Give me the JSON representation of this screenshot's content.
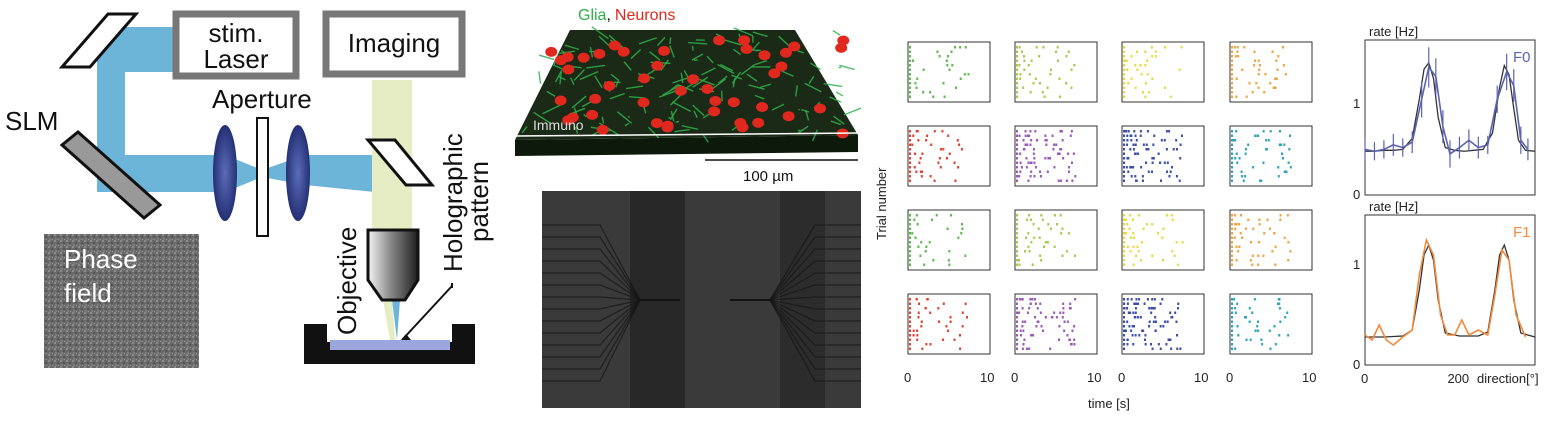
{
  "setup": {
    "stim_laser_label": [
      "stim.",
      "Laser"
    ],
    "imaging_label": "Imaging",
    "slm_label": "SLM",
    "aperture_label": "Aperture",
    "phase_field_label": [
      "Phase",
      "field"
    ],
    "objective_label": "Objective",
    "holographic_label": [
      "Holographic",
      "pattern"
    ],
    "beam_color": "#6cb4d8",
    "imaging_beam_color": "#e6edc4",
    "lens_color": "#3a4a8c"
  },
  "tissue": {
    "title_glia": "Glia",
    "title_sep": ",",
    "title_neurons": "Neurons",
    "glia_color": "#2db04b",
    "neuron_color": "#e0281e",
    "immuno_label": "Immuno",
    "scale_label": "100 µm"
  },
  "raster": {
    "ylabel": "Trial number",
    "xlabel": "time [s]",
    "x_ticks": [
      "0",
      "10"
    ],
    "xlim": [
      0,
      10
    ],
    "row_colors": [
      [
        "#5bb84a",
        "#a6c94a",
        "#e9d83c",
        "#f0a23c"
      ],
      [
        "#e0402e",
        "#9b59b6",
        "#3b4ea8",
        "#2ba3b8"
      ],
      [
        "#5bb84a",
        "#a6c94a",
        "#e9d83c",
        "#f0a23c"
      ],
      [
        "#e0402e",
        "#9b59b6",
        "#3b4ea8",
        "#2ba3b8"
      ]
    ],
    "densities": [
      [
        0.25,
        0.35,
        0.3,
        0.35
      ],
      [
        0.35,
        0.7,
        0.75,
        0.4
      ],
      [
        0.25,
        0.35,
        0.35,
        0.4
      ],
      [
        0.35,
        0.65,
        0.8,
        0.35
      ]
    ]
  },
  "chart_data": [
    {
      "type": "line",
      "series_label": "F0",
      "ylabel": "rate [Hz]",
      "y_ticks": [
        "0",
        "1"
      ],
      "ylim": [
        0,
        1.7
      ],
      "xlim": [
        0,
        360
      ],
      "color": "#5b63b0",
      "fit": [
        [
          0,
          0.48
        ],
        [
          20,
          0.48
        ],
        [
          40,
          0.49
        ],
        [
          60,
          0.49
        ],
        [
          80,
          0.5
        ],
        [
          100,
          0.62
        ],
        [
          115,
          1.05
        ],
        [
          125,
          1.38
        ],
        [
          135,
          1.45
        ],
        [
          145,
          1.28
        ],
        [
          155,
          0.85
        ],
        [
          170,
          0.52
        ],
        [
          190,
          0.49
        ],
        [
          210,
          0.48
        ],
        [
          230,
          0.49
        ],
        [
          250,
          0.5
        ],
        [
          270,
          0.68
        ],
        [
          285,
          1.18
        ],
        [
          295,
          1.42
        ],
        [
          305,
          1.32
        ],
        [
          315,
          0.95
        ],
        [
          325,
          0.6
        ],
        [
          340,
          0.49
        ],
        [
          360,
          0.48
        ]
      ],
      "measured": [
        [
          0,
          0.5
        ],
        [
          20,
          0.48
        ],
        [
          40,
          0.5
        ],
        [
          60,
          0.55
        ],
        [
          80,
          0.52
        ],
        [
          100,
          0.58
        ],
        [
          120,
          1.05
        ],
        [
          135,
          1.4
        ],
        [
          150,
          1.3
        ],
        [
          165,
          0.75
        ],
        [
          180,
          0.45
        ],
        [
          200,
          0.52
        ],
        [
          220,
          0.6
        ],
        [
          240,
          0.52
        ],
        [
          260,
          0.55
        ],
        [
          280,
          1.05
        ],
        [
          300,
          1.35
        ],
        [
          315,
          1.2
        ],
        [
          330,
          0.6
        ],
        [
          345,
          0.5
        ]
      ],
      "error_bars": [
        0.12,
        0.1,
        0.1,
        0.12,
        0.1,
        0.12,
        0.2,
        0.22,
        0.2,
        0.18,
        0.15,
        0.12,
        0.12,
        0.12,
        0.1,
        0.15,
        0.2,
        0.18,
        0.15,
        0.12
      ]
    },
    {
      "type": "line",
      "series_label": "F1",
      "ylabel": "rate [Hz]",
      "y_ticks": [
        "0",
        "1"
      ],
      "xlabel": "direction[°]",
      "x_ticks": [
        "0",
        "200"
      ],
      "ylim": [
        0,
        1.5
      ],
      "xlim": [
        0,
        360
      ],
      "color": "#f08a3c",
      "fit": [
        [
          0,
          0.28
        ],
        [
          40,
          0.28
        ],
        [
          80,
          0.29
        ],
        [
          100,
          0.35
        ],
        [
          115,
          0.75
        ],
        [
          125,
          1.1
        ],
        [
          135,
          1.2
        ],
        [
          145,
          1.05
        ],
        [
          155,
          0.65
        ],
        [
          170,
          0.32
        ],
        [
          200,
          0.29
        ],
        [
          240,
          0.29
        ],
        [
          260,
          0.33
        ],
        [
          275,
          0.75
        ],
        [
          285,
          1.1
        ],
        [
          295,
          1.2
        ],
        [
          305,
          1.05
        ],
        [
          315,
          0.65
        ],
        [
          330,
          0.32
        ],
        [
          360,
          0.28
        ]
      ],
      "measured": [
        [
          0,
          0.3
        ],
        [
          15,
          0.25
        ],
        [
          30,
          0.4
        ],
        [
          45,
          0.25
        ],
        [
          60,
          0.2
        ],
        [
          80,
          0.28
        ],
        [
          100,
          0.35
        ],
        [
          115,
          0.9
        ],
        [
          130,
          1.25
        ],
        [
          145,
          1.1
        ],
        [
          160,
          0.5
        ],
        [
          175,
          0.3
        ],
        [
          190,
          0.3
        ],
        [
          205,
          0.45
        ],
        [
          220,
          0.3
        ],
        [
          240,
          0.35
        ],
        [
          260,
          0.3
        ],
        [
          275,
          0.7
        ],
        [
          290,
          1.15
        ],
        [
          305,
          1.05
        ],
        [
          320,
          0.5
        ],
        [
          340,
          0.28
        ]
      ]
    }
  ]
}
